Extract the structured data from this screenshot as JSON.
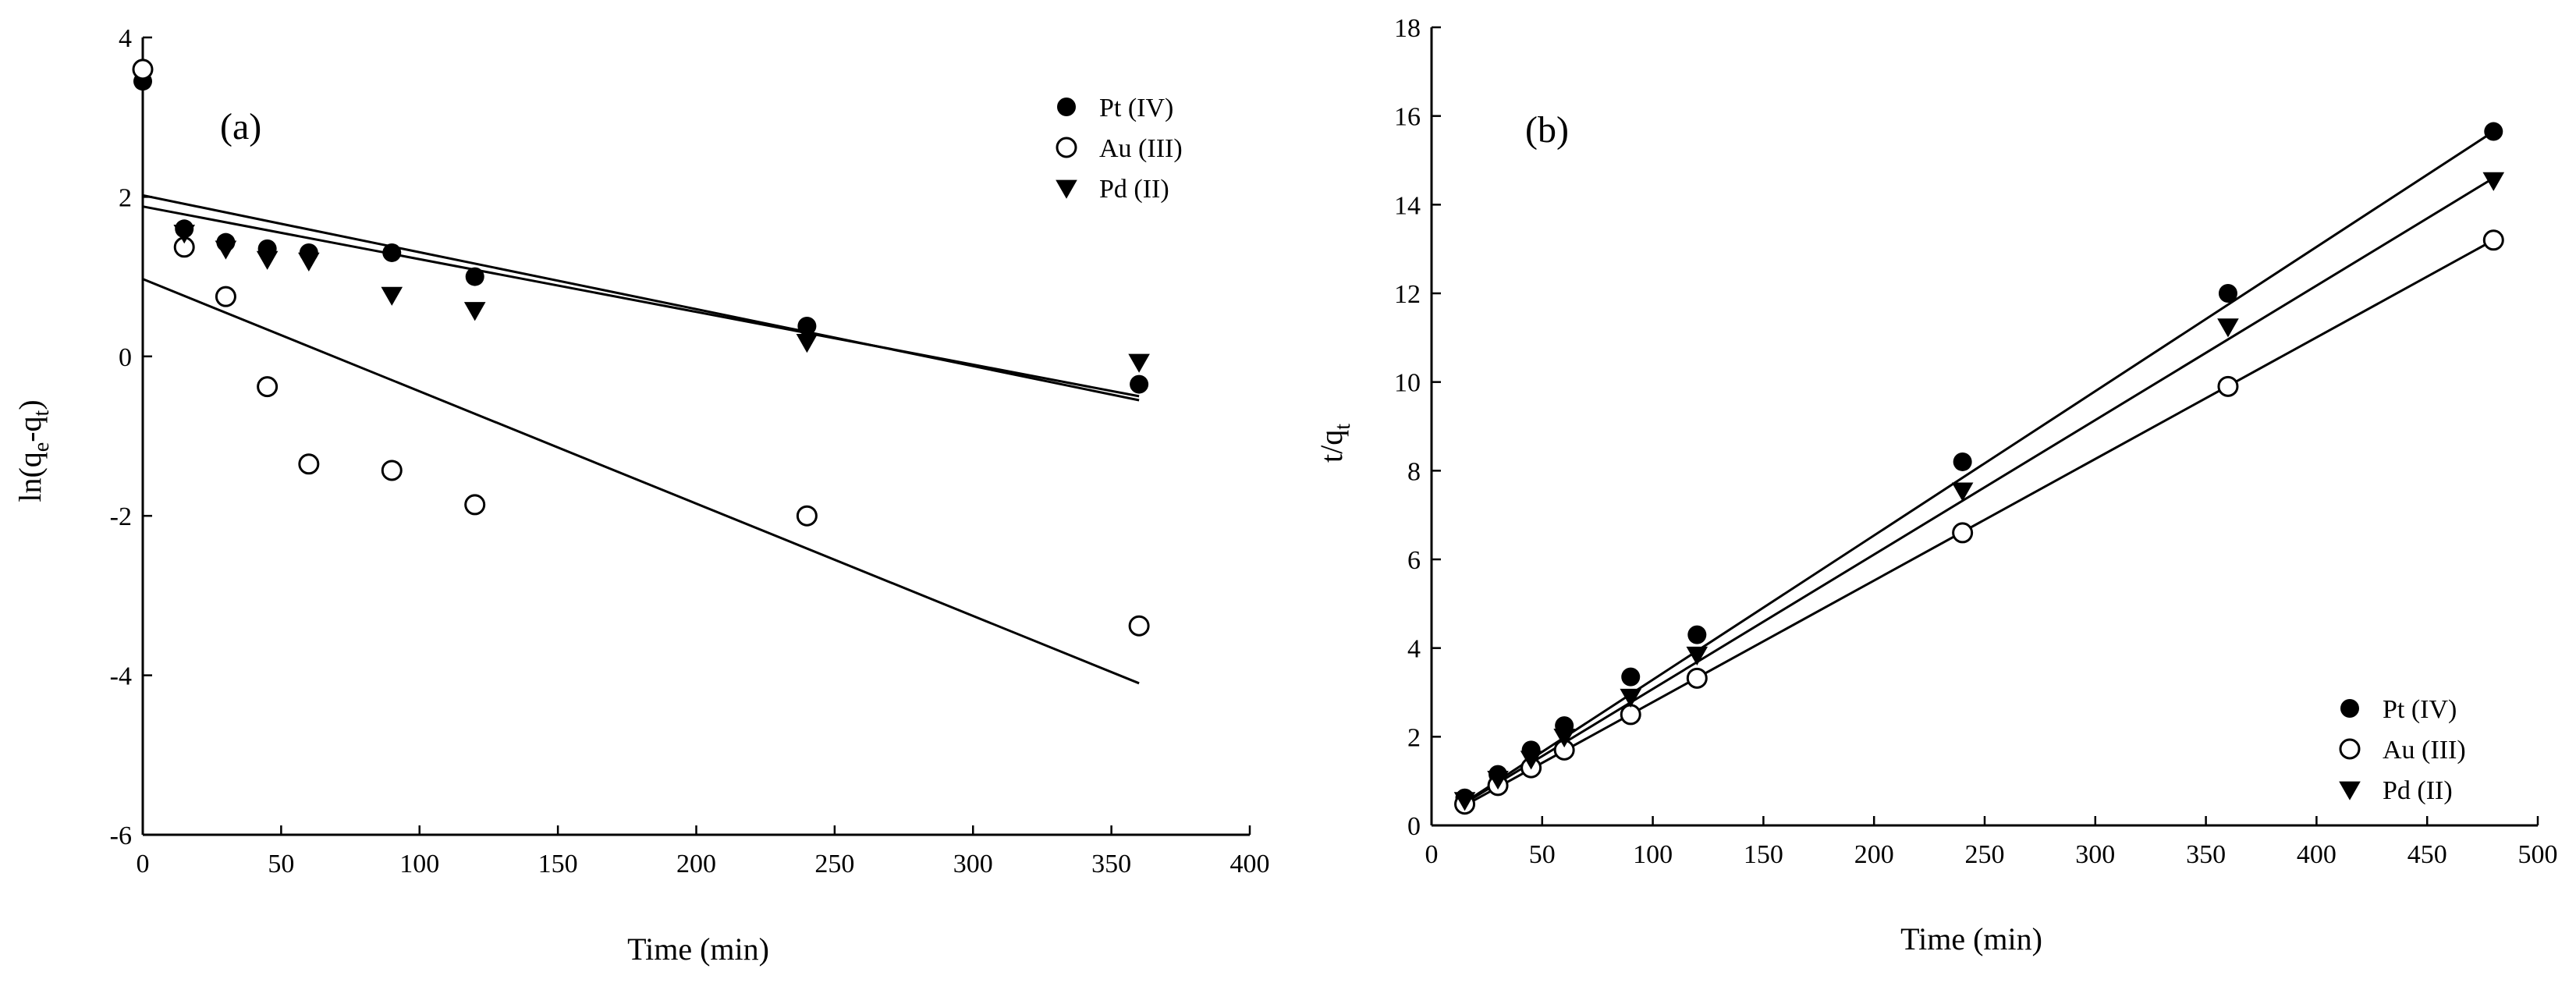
{
  "chart_data": [
    {
      "type": "scatter",
      "panel_label": "(a)",
      "title": "",
      "xlabel": "Time (min)",
      "ylabel_main": "ln(q",
      "ylabel_sub1": "e",
      "ylabel_mid": "-q",
      "ylabel_sub2": "t",
      "ylabel_end": ")",
      "xlim": [
        0,
        400
      ],
      "ylim": [
        -6,
        4
      ],
      "xticks": [
        0,
        50,
        100,
        150,
        200,
        250,
        300,
        350,
        400
      ],
      "yticks": [
        -6,
        -4,
        -2,
        0,
        2,
        4
      ],
      "legend_position": "top-right",
      "series": [
        {
          "name": "Pt (IV)",
          "marker": "filled-circle",
          "points": [
            [
              0,
              3.45
            ],
            [
              15,
              1.6
            ],
            [
              30,
              1.43
            ],
            [
              45,
              1.35
            ],
            [
              60,
              1.3
            ],
            [
              90,
              1.3
            ],
            [
              120,
              1.0
            ],
            [
              240,
              0.38
            ],
            [
              360,
              -0.35
            ]
          ],
          "fit": [
            [
              0,
              2.02
            ],
            [
              360,
              -0.55
            ]
          ]
        },
        {
          "name": "Au (III)",
          "marker": "open-circle",
          "points": [
            [
              0,
              3.6
            ],
            [
              15,
              1.37
            ],
            [
              30,
              0.75
            ],
            [
              45,
              -0.38
            ],
            [
              60,
              -1.35
            ],
            [
              90,
              -1.43
            ],
            [
              120,
              -1.86
            ],
            [
              240,
              -2.0
            ],
            [
              360,
              -3.38
            ]
          ],
          "fit": [
            [
              0,
              0.97
            ],
            [
              360,
              -4.1
            ]
          ]
        },
        {
          "name": "Pd (II)",
          "marker": "filled-triangle-down",
          "points": [
            [
              15,
              1.55
            ],
            [
              30,
              1.35
            ],
            [
              45,
              1.22
            ],
            [
              60,
              1.2
            ],
            [
              90,
              0.77
            ],
            [
              120,
              0.58
            ],
            [
              240,
              0.18
            ],
            [
              360,
              -0.07
            ]
          ],
          "fit": [
            [
              0,
              1.88
            ],
            [
              360,
              -0.5
            ]
          ]
        }
      ]
    },
    {
      "type": "scatter",
      "panel_label": "(b)",
      "title": "",
      "xlabel": "Time (min)",
      "ylabel_main": "t/q",
      "ylabel_sub": "t",
      "xlim": [
        0,
        500
      ],
      "ylim": [
        0,
        18
      ],
      "xticks": [
        0,
        50,
        100,
        150,
        200,
        250,
        300,
        350,
        400,
        450,
        500
      ],
      "yticks": [
        0,
        2,
        4,
        6,
        8,
        10,
        12,
        14,
        16,
        18
      ],
      "legend_position": "bottom-right",
      "series": [
        {
          "name": "Pt (IV)",
          "marker": "filled-circle",
          "points": [
            [
              15,
              0.62
            ],
            [
              30,
              1.15
            ],
            [
              45,
              1.7
            ],
            [
              60,
              2.25
            ],
            [
              90,
              3.35
            ],
            [
              120,
              4.3
            ],
            [
              240,
              8.2
            ],
            [
              360,
              12.0
            ],
            [
              480,
              15.65
            ]
          ],
          "fit": [
            [
              15,
              0.52
            ],
            [
              480,
              15.65
            ]
          ]
        },
        {
          "name": "Au (III)",
          "marker": "open-circle",
          "points": [
            [
              15,
              0.48
            ],
            [
              30,
              0.9
            ],
            [
              45,
              1.3
            ],
            [
              60,
              1.7
            ],
            [
              90,
              2.5
            ],
            [
              120,
              3.32
            ],
            [
              240,
              6.6
            ],
            [
              360,
              9.9
            ],
            [
              480,
              13.2
            ]
          ],
          "fit": [
            [
              15,
              0.45
            ],
            [
              480,
              13.2
            ]
          ]
        },
        {
          "name": "Pd (II)",
          "marker": "filled-triangle-down",
          "points": [
            [
              15,
              0.57
            ],
            [
              30,
              1.05
            ],
            [
              45,
              1.5
            ],
            [
              60,
              2.0
            ],
            [
              90,
              2.9
            ],
            [
              120,
              3.85
            ],
            [
              240,
              7.55
            ],
            [
              360,
              11.25
            ],
            [
              480,
              14.55
            ]
          ],
          "fit": [
            [
              15,
              0.5
            ],
            [
              480,
              14.6
            ]
          ]
        }
      ]
    }
  ]
}
